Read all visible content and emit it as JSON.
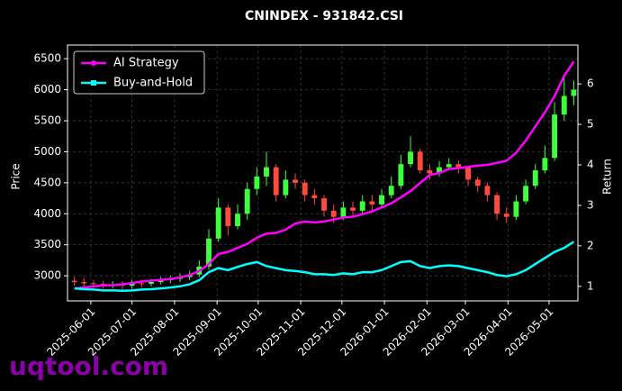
{
  "chart_data": {
    "type": "candlestick",
    "title": "CNINDEX - 931842.CSI",
    "ylabel": "Price",
    "y2label": "Return",
    "x": [
      "2025-05-20",
      "2025-05-27",
      "2025-06-03",
      "2025-06-10",
      "2025-06-17",
      "2025-06-24",
      "2025-07-01",
      "2025-07-08",
      "2025-07-15",
      "2025-07-22",
      "2025-07-29",
      "2025-08-05",
      "2025-08-12",
      "2025-08-19",
      "2025-08-26",
      "2025-09-02",
      "2025-09-09",
      "2025-09-16",
      "2025-09-23",
      "2025-09-30",
      "2025-10-07",
      "2025-10-14",
      "2025-10-21",
      "2025-10-28",
      "2025-11-04",
      "2025-11-11",
      "2025-11-18",
      "2025-11-25",
      "2025-12-02",
      "2025-12-09",
      "2025-12-16",
      "2025-12-23",
      "2025-12-30",
      "2026-01-06",
      "2026-01-13",
      "2026-01-20",
      "2026-01-27",
      "2026-02-03",
      "2026-02-10",
      "2026-02-17",
      "2026-02-24",
      "2026-03-03",
      "2026-03-10",
      "2026-03-17",
      "2026-03-24",
      "2026-03-31",
      "2026-04-07",
      "2026-04-14",
      "2026-04-21",
      "2026-04-28",
      "2026-05-05",
      "2026-05-12",
      "2026-05-19"
    ],
    "open": [
      2920,
      2900,
      2880,
      2870,
      2850,
      2860,
      2840,
      2880,
      2870,
      2900,
      2930,
      2950,
      2980,
      3020,
      3150,
      3600,
      4100,
      3800,
      4000,
      4400,
      4600,
      4750,
      4300,
      4550,
      4500,
      4300,
      4250,
      4050,
      3950,
      4100,
      4050,
      4200,
      4150,
      4300,
      4450,
      4800,
      5000,
      4700,
      4650,
      4750,
      4800,
      4750,
      4550,
      4450,
      4300,
      4000,
      3950,
      4200,
      4450,
      4700,
      4900,
      5600,
      5900
    ],
    "high": [
      2980,
      2960,
      2930,
      2920,
      2910,
      2910,
      2930,
      2930,
      2950,
      2980,
      3000,
      3040,
      3080,
      3250,
      3750,
      4250,
      4150,
      4150,
      4500,
      4750,
      5000,
      4800,
      4700,
      4650,
      4550,
      4400,
      4300,
      4150,
      4200,
      4200,
      4300,
      4300,
      4400,
      4600,
      4950,
      5250,
      5050,
      4800,
      4850,
      4900,
      4850,
      4750,
      4600,
      4500,
      4350,
      4100,
      4300,
      4550,
      4800,
      5100,
      5800,
      6200,
      6150
    ],
    "low": [
      2840,
      2820,
      2800,
      2790,
      2800,
      2780,
      2790,
      2810,
      2830,
      2860,
      2880,
      2900,
      2930,
      2980,
      3100,
      3550,
      3650,
      3750,
      3900,
      4300,
      4450,
      4200,
      4250,
      4400,
      4200,
      4150,
      3950,
      3850,
      3900,
      3950,
      4000,
      4050,
      4100,
      4250,
      4400,
      4750,
      4650,
      4550,
      4600,
      4700,
      4650,
      4450,
      4350,
      4200,
      3900,
      3850,
      3900,
      4150,
      4400,
      4650,
      4850,
      5500,
      5750
    ],
    "close": [
      2900,
      2880,
      2870,
      2850,
      2860,
      2840,
      2880,
      2870,
      2900,
      2930,
      2950,
      2980,
      3020,
      3150,
      3600,
      4100,
      3800,
      4000,
      4400,
      4600,
      4750,
      4300,
      4550,
      4500,
      4300,
      4250,
      4050,
      3950,
      4100,
      4050,
      4200,
      4150,
      4300,
      4450,
      4800,
      5000,
      4700,
      4650,
      4750,
      4800,
      4750,
      4550,
      4450,
      4300,
      4000,
      3950,
      4200,
      4450,
      4700,
      4900,
      5600,
      5900,
      6000
    ],
    "up_color": "#3dff3d",
    "down_color": "#ff4a3d",
    "series": [
      {
        "name": "AI Strategy",
        "color": "#ff00ff",
        "axis": "y2",
        "marker": "o",
        "values": [
          0.95,
          0.97,
          1.0,
          1.02,
          1.03,
          1.05,
          1.08,
          1.12,
          1.14,
          1.16,
          1.18,
          1.22,
          1.28,
          1.38,
          1.55,
          1.8,
          1.85,
          1.95,
          2.05,
          2.2,
          2.3,
          2.32,
          2.4,
          2.55,
          2.6,
          2.58,
          2.6,
          2.65,
          2.7,
          2.72,
          2.78,
          2.85,
          2.95,
          3.05,
          3.2,
          3.35,
          3.55,
          3.75,
          3.8,
          3.9,
          3.92,
          3.95,
          3.98,
          4.0,
          4.05,
          4.1,
          4.3,
          4.6,
          4.95,
          5.3,
          5.7,
          6.2,
          6.55
        ]
      },
      {
        "name": "Buy-and-Hold",
        "color": "#00ffff",
        "axis": "y2",
        "marker": "s",
        "values": [
          0.95,
          0.93,
          0.92,
          0.9,
          0.9,
          0.89,
          0.9,
          0.92,
          0.93,
          0.95,
          0.97,
          1.0,
          1.05,
          1.15,
          1.35,
          1.45,
          1.4,
          1.48,
          1.55,
          1.6,
          1.5,
          1.45,
          1.4,
          1.38,
          1.35,
          1.3,
          1.3,
          1.28,
          1.32,
          1.3,
          1.35,
          1.35,
          1.4,
          1.5,
          1.6,
          1.62,
          1.5,
          1.45,
          1.5,
          1.52,
          1.5,
          1.45,
          1.4,
          1.35,
          1.28,
          1.25,
          1.3,
          1.4,
          1.55,
          1.7,
          1.85,
          1.95,
          2.1
        ]
      }
    ],
    "xlim": [
      "2025-05-15",
      "2026-05-22"
    ],
    "xticks": [
      "2025-06-01",
      "2025-07-01",
      "2025-08-01",
      "2025-09-01",
      "2025-10-01",
      "2025-11-01",
      "2025-12-01",
      "2026-01-01",
      "2026-02-01",
      "2026-03-01",
      "2026-04-01",
      "2026-05-01"
    ],
    "ylim": [
      2595,
      6720
    ],
    "yticks": [
      3000,
      3500,
      4000,
      4500,
      5000,
      5500,
      6000,
      6500
    ],
    "y2lim": [
      0.64,
      6.96
    ],
    "y2ticks": [
      1,
      2,
      3,
      4,
      5,
      6
    ],
    "grid": true,
    "legend": "upper left"
  },
  "watermark": "uqtool.com"
}
